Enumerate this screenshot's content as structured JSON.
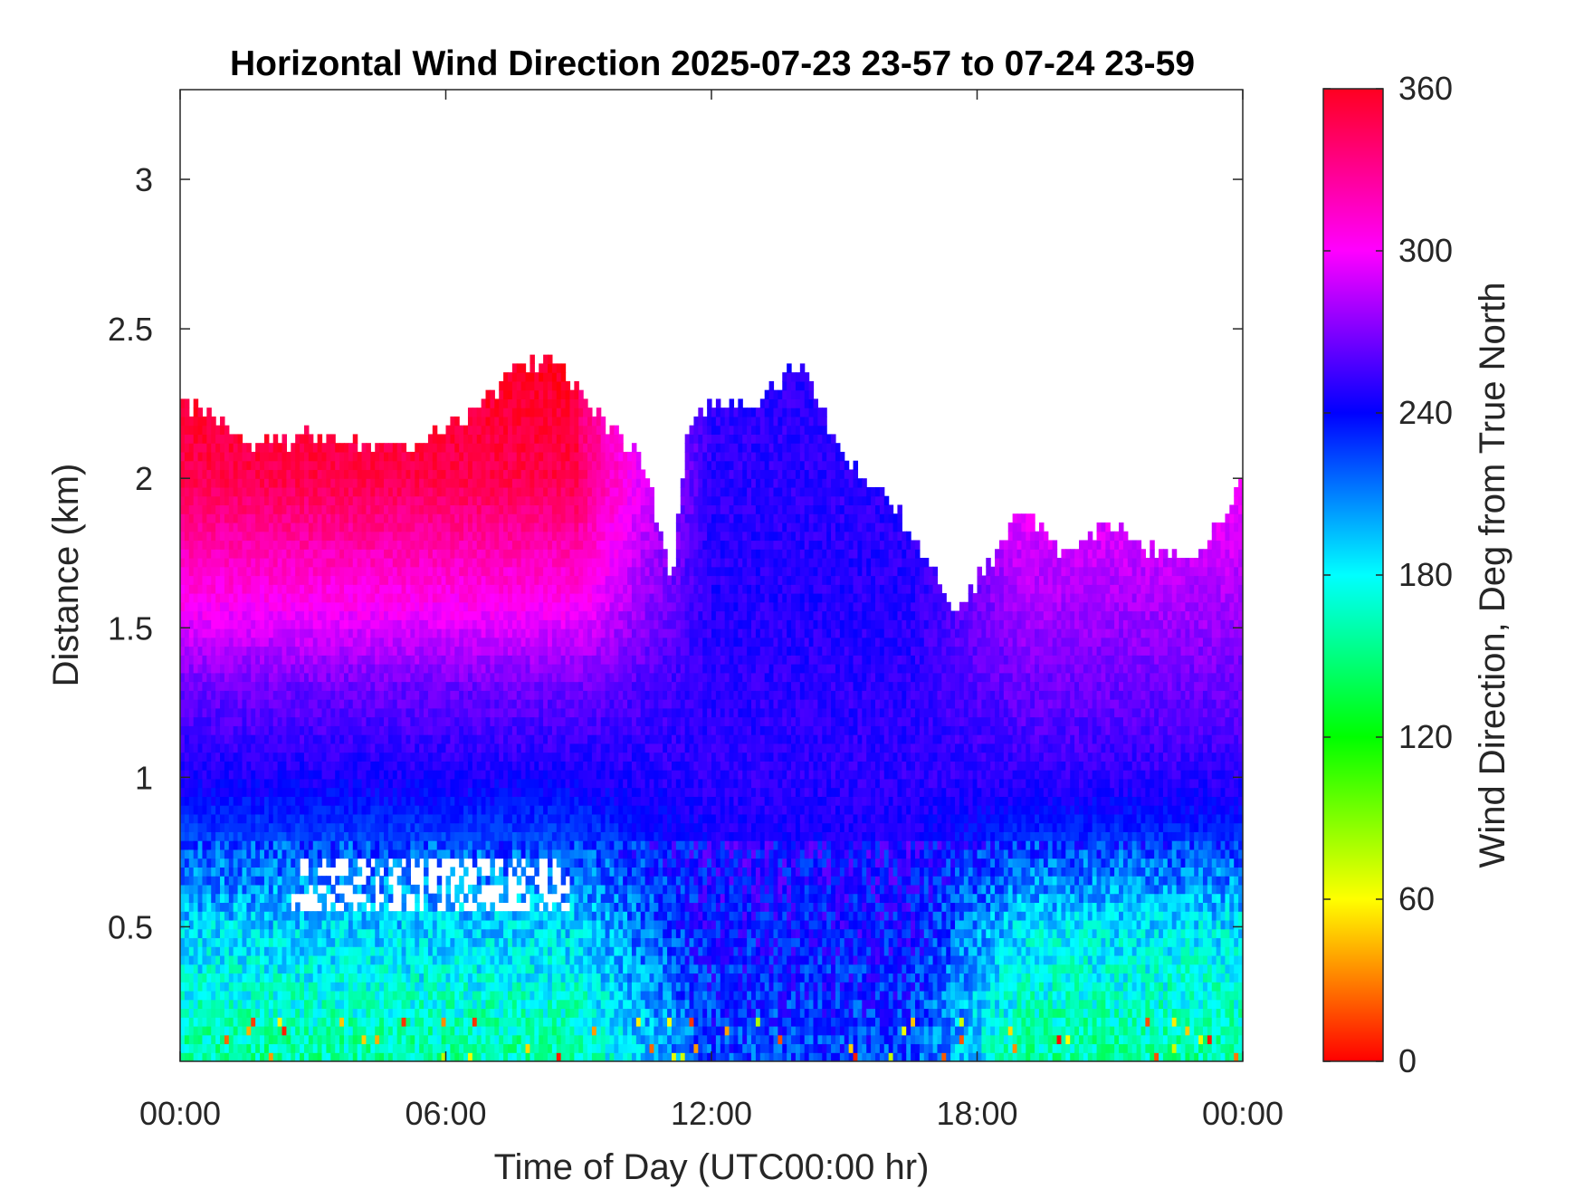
{
  "chart_data": {
    "type": "heatmap",
    "title": "Horizontal Wind Direction 2025-07-23 23-57 to 07-24 23-59",
    "xlabel": "Time of Day (UTC00:00 hr)",
    "ylabel": "Distance (km)",
    "x_ticks": [
      "00:00",
      "06:00",
      "12:00",
      "18:00",
      "00:00"
    ],
    "x_tick_hours": [
      0,
      6,
      12,
      18,
      24
    ],
    "xlim_hours": [
      0,
      24
    ],
    "y_ticks": [
      0.5,
      1,
      1.5,
      2,
      2.5,
      3
    ],
    "y_tick_labels": [
      "0.5",
      "1",
      "1.5",
      "2",
      "2.5",
      "3"
    ],
    "ylim": [
      0.05,
      3.3
    ],
    "colorbar": {
      "label": "Wind Direction, Deg from True North",
      "ticks": [
        0,
        60,
        120,
        180,
        240,
        300,
        360
      ],
      "tick_labels": [
        "0",
        "60",
        "120",
        "180",
        "240",
        "300",
        "360"
      ],
      "range": [
        0,
        360
      ],
      "colormap": "hsv"
    },
    "data_top_km_by_hour": [
      [
        0,
        2.25
      ],
      [
        1,
        2.2
      ],
      [
        1.5,
        2.1
      ],
      [
        3,
        2.15
      ],
      [
        4.5,
        2.1
      ],
      [
        5.5,
        2.12
      ],
      [
        6.5,
        2.2
      ],
      [
        7.5,
        2.35
      ],
      [
        8.5,
        2.4
      ],
      [
        9.5,
        2.2
      ],
      [
        10.5,
        2.05
      ],
      [
        11.1,
        1.65
      ],
      [
        11.5,
        2.2
      ],
      [
        12,
        2.25
      ],
      [
        13,
        2.25
      ],
      [
        14,
        2.4
      ],
      [
        15,
        2.05
      ],
      [
        16,
        1.95
      ],
      [
        17,
        1.7
      ],
      [
        17.5,
        1.55
      ],
      [
        18,
        1.65
      ],
      [
        19,
        1.9
      ],
      [
        20,
        1.75
      ],
      [
        21,
        1.85
      ],
      [
        22,
        1.75
      ],
      [
        23,
        1.75
      ],
      [
        24,
        2.0
      ]
    ],
    "direction_profile_deg_by_height": [
      {
        "height_km": 0.1,
        "morning": 160,
        "midday": 225,
        "evening": 160
      },
      {
        "height_km": 0.5,
        "morning": 190,
        "midday": 240,
        "evening": 185
      },
      {
        "height_km": 0.8,
        "morning": 225,
        "midday": 245,
        "evening": 230
      },
      {
        "height_km": 1.0,
        "morning": 245,
        "midday": 250,
        "evening": 250
      },
      {
        "height_km": 1.3,
        "morning": 265,
        "midday": 250,
        "evening": 265
      },
      {
        "height_km": 1.6,
        "morning": 305,
        "midday": 248,
        "evening": 280
      },
      {
        "height_km": 2.0,
        "morning": 335,
        "midday": 250,
        "evening": 300
      }
    ]
  }
}
